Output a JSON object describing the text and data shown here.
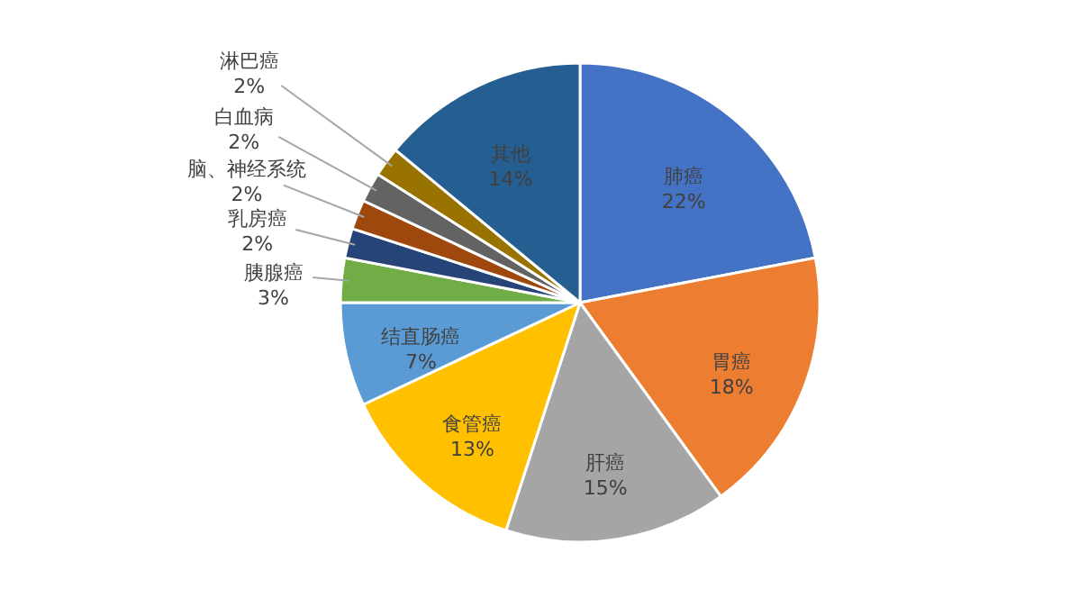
{
  "chart_data": {
    "type": "pie",
    "categories": [
      "肺癌",
      "胃癌",
      "肝癌",
      "食管癌",
      "结直肠癌",
      "胰腺癌",
      "乳房癌",
      "脑、神经系统",
      "白血病",
      "淋巴癌",
      "其他"
    ],
    "values": [
      22,
      18,
      15,
      13,
      7,
      3,
      2,
      2,
      2,
      2,
      14
    ],
    "value_labels": [
      "22%",
      "18%",
      "15%",
      "13%",
      "7%",
      "3%",
      "2%",
      "2%",
      "2%",
      "2%",
      "14%"
    ],
    "colors": [
      "#4472c4",
      "#ed7d31",
      "#a5a5a5",
      "#ffc000",
      "#5b9bd5",
      "#70ad47",
      "#264478",
      "#9e480e",
      "#636363",
      "#997300",
      "#255e91"
    ]
  }
}
